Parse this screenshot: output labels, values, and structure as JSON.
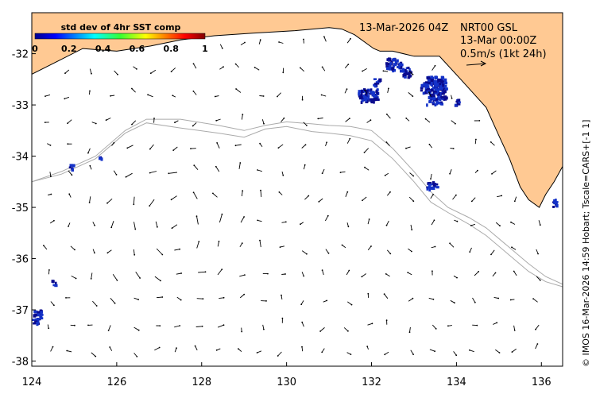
{
  "colorbar": {
    "title": "std dev of 4hr SST comp",
    "ticks": [
      "0",
      "0.2",
      "0.4",
      "0.6",
      "0.8",
      "1"
    ]
  },
  "info": {
    "date_label": "13-Mar-2026 04Z",
    "product": "NRT00 GSL",
    "time": "13-Mar 00:00Z",
    "scale_label": "0.5m/s (1kt 24h)"
  },
  "credit": "© IMOS 16-Mar-2026 14:59 Hobart; Tscale=CARS+[-1 1]",
  "colors": {
    "land": "#ffc993",
    "sst_low": "#1432c8",
    "sst_mid": "#0a0a8c",
    "isobath": "#aaaaaa"
  },
  "map_data": {
    "lon_range": [
      124,
      136.5
    ],
    "lat_range": [
      -38.1,
      -31.2
    ],
    "x_ticks": [
      "124",
      "126",
      "128",
      "130",
      "132",
      "134",
      "136"
    ],
    "x_tick_values": [
      124,
      126,
      128,
      130,
      132,
      134,
      136
    ],
    "y_ticks": [
      "-32",
      "-33",
      "-34",
      "-35",
      "-36",
      "-37",
      "-38"
    ],
    "y_tick_values": [
      -32,
      -33,
      -34,
      -35,
      -36,
      -37,
      -38
    ],
    "coast": [
      [
        124,
        -31.2
      ],
      [
        124,
        -32.4
      ],
      [
        124.6,
        -32.15
      ],
      [
        125.2,
        -31.9
      ],
      [
        126,
        -31.95
      ],
      [
        126.8,
        -31.85
      ],
      [
        127.5,
        -31.73
      ],
      [
        128.3,
        -31.65
      ],
      [
        129.2,
        -31.6
      ],
      [
        130.2,
        -31.55
      ],
      [
        131,
        -31.49
      ],
      [
        131.3,
        -31.52
      ],
      [
        131.6,
        -31.63
      ],
      [
        132.05,
        -31.9
      ],
      [
        132.2,
        -31.95
      ],
      [
        132.5,
        -31.95
      ],
      [
        133,
        -32.05
      ],
      [
        133.6,
        -32.05
      ],
      [
        134.1,
        -32.5
      ],
      [
        134.7,
        -33.05
      ],
      [
        135,
        -33.6
      ],
      [
        135.25,
        -34.05
      ],
      [
        135.5,
        -34.6
      ],
      [
        135.7,
        -34.85
      ],
      [
        135.95,
        -35.0
      ],
      [
        136.1,
        -34.75
      ],
      [
        136.3,
        -34.5
      ],
      [
        136.5,
        -34.2
      ],
      [
        136.5,
        -31.2
      ]
    ],
    "isobath": [
      [
        124,
        -34.5
      ],
      [
        124.7,
        -34.3
      ],
      [
        125.5,
        -34.0
      ],
      [
        126.2,
        -33.5
      ],
      [
        126.7,
        -33.28
      ],
      [
        127.5,
        -33.28
      ],
      [
        128.4,
        -33.4
      ],
      [
        129,
        -33.5
      ],
      [
        129.5,
        -33.4
      ],
      [
        130,
        -33.33
      ],
      [
        130.6,
        -33.37
      ],
      [
        131,
        -33.4
      ],
      [
        131.5,
        -33.42
      ],
      [
        132,
        -33.5
      ],
      [
        132.5,
        -33.85
      ],
      [
        133,
        -34.3
      ],
      [
        133.4,
        -34.7
      ],
      [
        133.8,
        -35.0
      ],
      [
        134.3,
        -35.2
      ],
      [
        134.7,
        -35.4
      ],
      [
        135.2,
        -35.75
      ],
      [
        135.7,
        -36.1
      ],
      [
        136.1,
        -36.35
      ],
      [
        136.5,
        -36.5
      ]
    ],
    "isobath2": [
      [
        124,
        -34.5
      ],
      [
        124.7,
        -34.35
      ],
      [
        125.5,
        -34.05
      ],
      [
        126.2,
        -33.55
      ],
      [
        126.7,
        -33.35
      ],
      [
        127.5,
        -33.45
      ],
      [
        128.4,
        -33.55
      ],
      [
        129,
        -33.63
      ],
      [
        129.5,
        -33.47
      ],
      [
        130,
        -33.42
      ],
      [
        130.6,
        -33.52
      ],
      [
        131,
        -33.55
      ],
      [
        131.5,
        -33.6
      ],
      [
        132,
        -33.7
      ],
      [
        132.5,
        -34.05
      ],
      [
        133,
        -34.5
      ],
      [
        133.4,
        -34.9
      ],
      [
        133.8,
        -35.1
      ],
      [
        134.3,
        -35.33
      ],
      [
        134.7,
        -35.55
      ],
      [
        135.2,
        -35.9
      ],
      [
        135.7,
        -36.25
      ],
      [
        136.1,
        -36.45
      ],
      [
        136.5,
        -36.55
      ]
    ],
    "sst_patches": [
      {
        "lon": 132.5,
        "lat": -32.2,
        "w": 0.35,
        "h": 0.25
      },
      {
        "lon": 132.8,
        "lat": -32.35,
        "w": 0.2,
        "h": 0.2
      },
      {
        "lon": 131.9,
        "lat": -32.8,
        "w": 0.45,
        "h": 0.25
      },
      {
        "lon": 132.1,
        "lat": -32.55,
        "w": 0.15,
        "h": 0.15
      },
      {
        "lon": 133.2,
        "lat": -32.65,
        "w": 0.15,
        "h": 0.2
      },
      {
        "lon": 133.5,
        "lat": -32.7,
        "w": 0.45,
        "h": 0.55
      },
      {
        "lon": 133.4,
        "lat": -32.6,
        "w": 0.3,
        "h": 0.2
      },
      {
        "lon": 134.0,
        "lat": -32.95,
        "w": 0.1,
        "h": 0.15
      },
      {
        "lon": 133.4,
        "lat": -34.55,
        "w": 0.25,
        "h": 0.15
      },
      {
        "lon": 124.9,
        "lat": -34.2,
        "w": 0.08,
        "h": 0.1
      },
      {
        "lon": 125.6,
        "lat": -34.0,
        "w": 0.06,
        "h": 0.06
      },
      {
        "lon": 124.5,
        "lat": -36.45,
        "w": 0.1,
        "h": 0.1
      },
      {
        "lon": 124.1,
        "lat": -37.1,
        "w": 0.2,
        "h": 0.3
      },
      {
        "lon": 136.3,
        "lat": -34.9,
        "w": 0.1,
        "h": 0.15
      }
    ]
  }
}
